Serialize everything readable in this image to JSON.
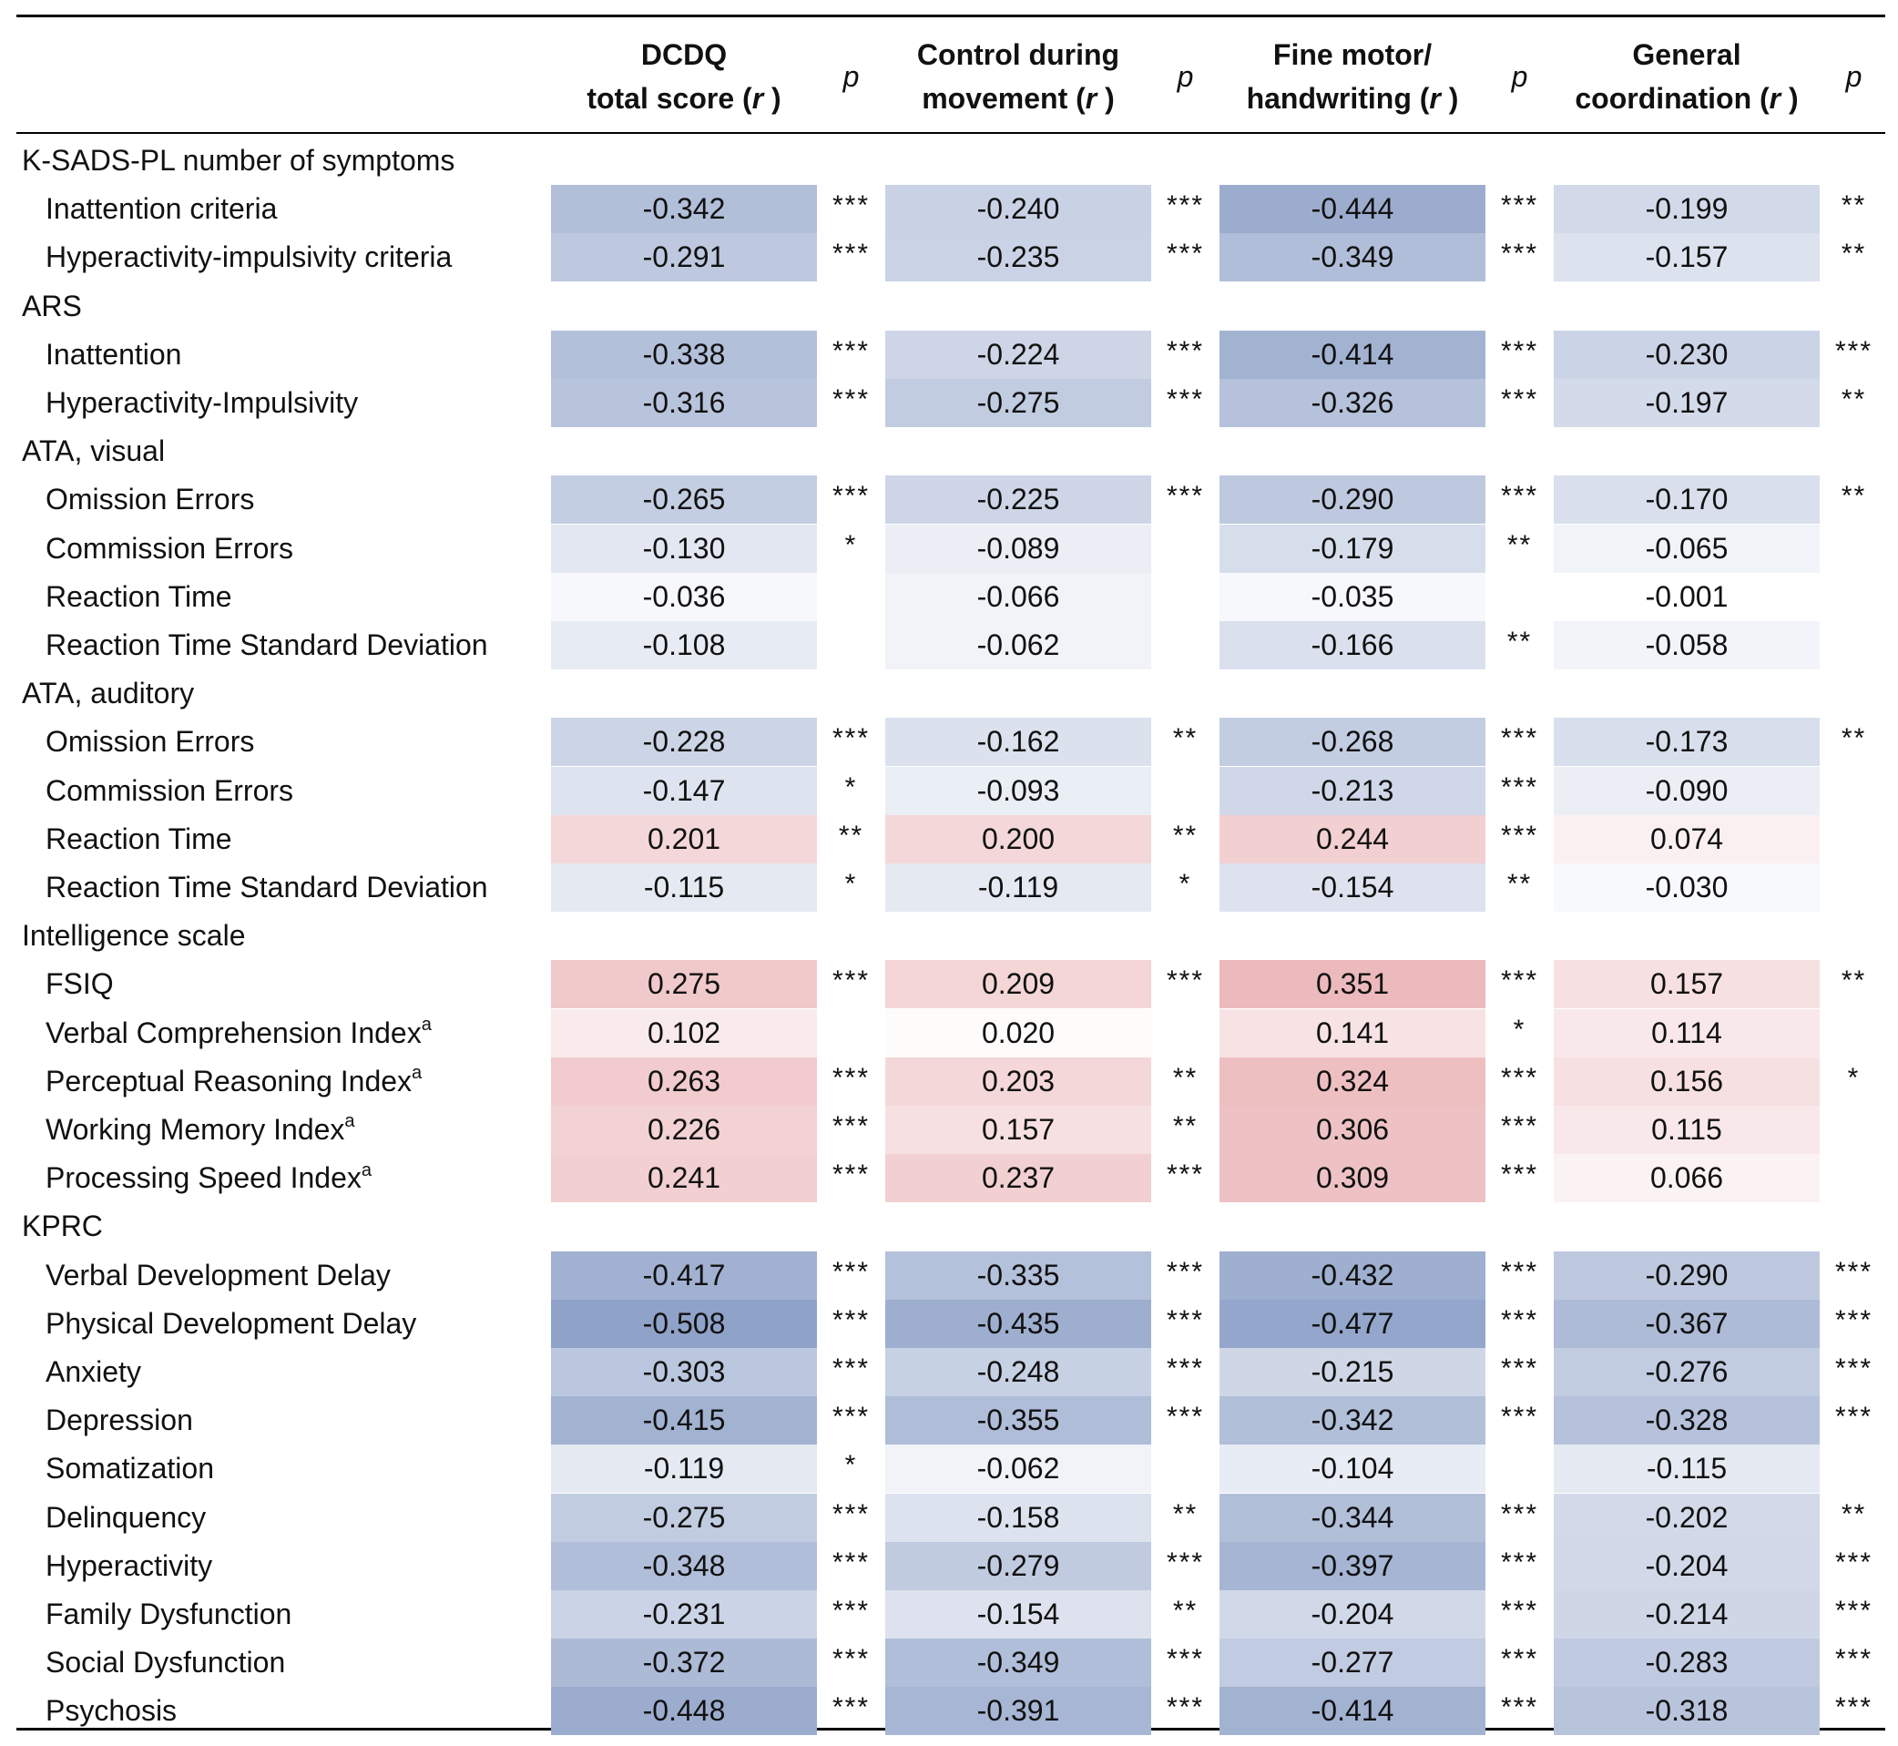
{
  "header": {
    "columns": [
      {
        "line1": "DCDQ",
        "line2": "total score (",
        "stat": "r",
        "close": " )"
      },
      {
        "line1": "Control during",
        "line2": "movement (",
        "stat": "r",
        "close": " )"
      },
      {
        "line1": "Fine motor/",
        "line2": "handwriting (",
        "stat": "r",
        "close": " )"
      },
      {
        "line1": "General",
        "line2": "coordination (",
        "stat": "r",
        "close": " )"
      }
    ],
    "p_label": "p"
  },
  "rows": [
    {
      "type": "section",
      "label": "K-SADS-PL number of symptoms"
    },
    {
      "type": "item",
      "label": "Inattention criteria",
      "sup": "",
      "r": [
        "-0.342",
        "-0.240",
        "-0.444",
        "-0.199"
      ],
      "p": [
        "***",
        "***",
        "***",
        "**"
      ]
    },
    {
      "type": "item",
      "label": "Hyperactivity-impulsivity criteria",
      "sup": "",
      "r": [
        "-0.291",
        "-0.235",
        "-0.349",
        "-0.157"
      ],
      "p": [
        "***",
        "***",
        "***",
        "**"
      ]
    },
    {
      "type": "section",
      "label": "ARS"
    },
    {
      "type": "item",
      "label": "Inattention",
      "sup": "",
      "r": [
        "-0.338",
        "-0.224",
        "-0.414",
        "-0.230"
      ],
      "p": [
        "***",
        "***",
        "***",
        "***"
      ]
    },
    {
      "type": "item",
      "label": "Hyperactivity-Impulsivity",
      "sup": "",
      "r": [
        "-0.316",
        "-0.275",
        "-0.326",
        "-0.197"
      ],
      "p": [
        "***",
        "***",
        "***",
        "**"
      ]
    },
    {
      "type": "section",
      "label": "ATA, visual"
    },
    {
      "type": "item",
      "label": "Omission Errors",
      "sup": "",
      "r": [
        "-0.265",
        "-0.225",
        "-0.290",
        "-0.170"
      ],
      "p": [
        "***",
        "***",
        "***",
        "**"
      ]
    },
    {
      "type": "item",
      "label": "Commission Errors",
      "sup": "",
      "r": [
        "-0.130",
        "-0.089",
        "-0.179",
        "-0.065"
      ],
      "p": [
        "*",
        "",
        "**",
        ""
      ]
    },
    {
      "type": "item",
      "label": "Reaction Time",
      "sup": "",
      "r": [
        "-0.036",
        "-0.066",
        "-0.035",
        "-0.001"
      ],
      "p": [
        "",
        "",
        "",
        ""
      ]
    },
    {
      "type": "item",
      "label": "Reaction Time Standard Deviation",
      "sup": "",
      "r": [
        "-0.108",
        "-0.062",
        "-0.166",
        "-0.058"
      ],
      "p": [
        "",
        "",
        "**",
        ""
      ]
    },
    {
      "type": "section",
      "label": "ATA, auditory"
    },
    {
      "type": "item",
      "label": "Omission Errors",
      "sup": "",
      "r": [
        "-0.228",
        "-0.162",
        "-0.268",
        "-0.173"
      ],
      "p": [
        "***",
        "**",
        "***",
        "**"
      ]
    },
    {
      "type": "item",
      "label": "Commission Errors",
      "sup": "",
      "r": [
        "-0.147",
        "-0.093",
        "-0.213",
        "-0.090"
      ],
      "p": [
        "*",
        "",
        "***",
        ""
      ]
    },
    {
      "type": "item",
      "label": "Reaction Time",
      "sup": "",
      "r": [
        "0.201",
        "0.200",
        "0.244",
        "0.074"
      ],
      "p": [
        "**",
        "**",
        "***",
        ""
      ]
    },
    {
      "type": "item",
      "label": "Reaction Time Standard Deviation",
      "sup": "",
      "r": [
        "-0.115",
        "-0.119",
        "-0.154",
        "-0.030"
      ],
      "p": [
        "*",
        "*",
        "**",
        ""
      ]
    },
    {
      "type": "section",
      "label": "Intelligence scale"
    },
    {
      "type": "item",
      "label": "FSIQ",
      "sup": "",
      "r": [
        "0.275",
        "0.209",
        "0.351",
        "0.157"
      ],
      "p": [
        "***",
        "***",
        "***",
        "**"
      ]
    },
    {
      "type": "item",
      "label": "Verbal Comprehension Index",
      "sup": "a",
      "r": [
        "0.102",
        "0.020",
        "0.141",
        "0.114"
      ],
      "p": [
        "",
        "",
        "*",
        ""
      ]
    },
    {
      "type": "item",
      "label": "Perceptual Reasoning Index",
      "sup": "a",
      "r": [
        "0.263",
        "0.203",
        "0.324",
        "0.156"
      ],
      "p": [
        "***",
        "**",
        "***",
        "*"
      ]
    },
    {
      "type": "item",
      "label": "Working Memory Index",
      "sup": "a",
      "r": [
        "0.226",
        "0.157",
        "0.306",
        "0.115"
      ],
      "p": [
        "***",
        "**",
        "***",
        ""
      ]
    },
    {
      "type": "item",
      "label": "Processing Speed Index",
      "sup": "a",
      "r": [
        "0.241",
        "0.237",
        "0.309",
        "0.066"
      ],
      "p": [
        "***",
        "***",
        "***",
        ""
      ]
    },
    {
      "type": "section",
      "label": "KPRC"
    },
    {
      "type": "item",
      "label": "Verbal Development Delay",
      "sup": "",
      "r": [
        "-0.417",
        "-0.335",
        "-0.432",
        "-0.290"
      ],
      "p": [
        "***",
        "***",
        "***",
        "***"
      ]
    },
    {
      "type": "item",
      "label": "Physical Development Delay",
      "sup": "",
      "r": [
        "-0.508",
        "-0.435",
        "-0.477",
        "-0.367"
      ],
      "p": [
        "***",
        "***",
        "***",
        "***"
      ]
    },
    {
      "type": "item",
      "label": "Anxiety",
      "sup": "",
      "r": [
        "-0.303",
        "-0.248",
        "-0.215",
        "-0.276"
      ],
      "p": [
        "***",
        "***",
        "***",
        "***"
      ]
    },
    {
      "type": "item",
      "label": "Depression",
      "sup": "",
      "r": [
        "-0.415",
        "-0.355",
        "-0.342",
        "-0.328"
      ],
      "p": [
        "***",
        "***",
        "***",
        "***"
      ]
    },
    {
      "type": "item",
      "label": "Somatization",
      "sup": "",
      "r": [
        "-0.119",
        "-0.062",
        "-0.104",
        "-0.115"
      ],
      "p": [
        "*",
        "",
        "",
        ""
      ]
    },
    {
      "type": "item",
      "label": "Delinquency",
      "sup": "",
      "r": [
        "-0.275",
        "-0.158",
        "-0.344",
        "-0.202"
      ],
      "p": [
        "***",
        "**",
        "***",
        "**"
      ]
    },
    {
      "type": "item",
      "label": "Hyperactivity",
      "sup": "",
      "r": [
        "-0.348",
        "-0.279",
        "-0.397",
        "-0.204"
      ],
      "p": [
        "***",
        "***",
        "***",
        "***"
      ]
    },
    {
      "type": "item",
      "label": "Family Dysfunction",
      "sup": "",
      "r": [
        "-0.231",
        "-0.154",
        "-0.204",
        "-0.214"
      ],
      "p": [
        "***",
        "**",
        "***",
        "***"
      ]
    },
    {
      "type": "item",
      "label": "Social Dysfunction",
      "sup": "",
      "r": [
        "-0.372",
        "-0.349",
        "-0.277",
        "-0.283"
      ],
      "p": [
        "***",
        "***",
        "***",
        "***"
      ]
    },
    {
      "type": "item",
      "label": "Psychosis",
      "sup": "",
      "r": [
        "-0.448",
        "-0.391",
        "-0.414",
        "-0.318"
      ],
      "p": [
        "***",
        "***",
        "***",
        "***"
      ]
    }
  ],
  "colors": {
    "negative": "#8fa2c8",
    "positive": "#e49ca0",
    "neutral": "#ffffff"
  }
}
